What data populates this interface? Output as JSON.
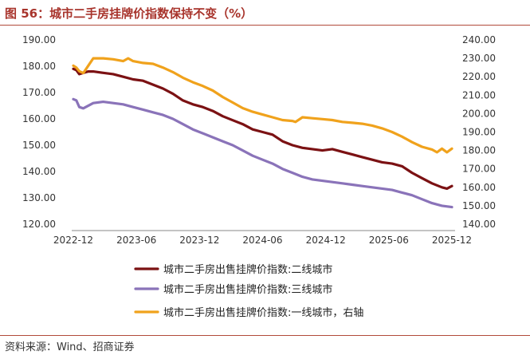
{
  "figure": {
    "title": "图 56：城市二手房挂牌价指数保持不变（%）",
    "source": "资料来源：Wind、招商证券"
  },
  "colors": {
    "tier2": "#7b1113",
    "tier3": "#8a73b9",
    "tier1": "#f0a21c",
    "title": "#a8342c"
  },
  "chart_data": {
    "type": "line",
    "title": "图 56：城市二手房挂牌价指数保持不变（%）",
    "xlabel": "",
    "ylabel": "",
    "x_ticks": [
      "2022-12",
      "2023-06",
      "2023-12",
      "2024-06",
      "2024-12",
      "2025-06",
      "2025-12"
    ],
    "xlim": [
      0,
      38
    ],
    "y_left": {
      "range": [
        120,
        190
      ],
      "ticks": [
        "120.00",
        "130.00",
        "140.00",
        "150.00",
        "160.00",
        "170.00",
        "180.00",
        "190.00"
      ]
    },
    "y_right": {
      "range": [
        140,
        240
      ],
      "ticks": [
        "140.00",
        "150.00",
        "160.00",
        "170.00",
        "180.00",
        "190.00",
        "200.00",
        "210.00",
        "220.00",
        "230.00",
        "240.00"
      ]
    },
    "series": [
      {
        "name": "城市二手房出售挂牌价指数:二线城市",
        "axis": "left",
        "color": "#7b1113",
        "x": [
          0,
          0.3,
          0.6,
          1,
          1.5,
          2,
          3,
          4,
          5,
          6,
          7,
          8,
          9,
          10,
          11,
          12,
          13,
          14,
          15,
          16,
          17,
          18,
          19,
          20,
          21,
          22,
          23,
          24,
          25,
          26,
          27,
          28,
          29,
          30,
          31,
          32,
          33,
          34,
          35,
          36,
          37,
          37.5,
          38
        ],
        "values": [
          179,
          178.5,
          177,
          177.5,
          178,
          178,
          177.5,
          177,
          176,
          175,
          174.5,
          173,
          171.5,
          169.5,
          167,
          165.5,
          164.5,
          163,
          161,
          159.5,
          158,
          156,
          155,
          154,
          151.5,
          150,
          149,
          148.5,
          148,
          148.5,
          147.5,
          146.5,
          145.5,
          144.5,
          143.5,
          143,
          142,
          139.5,
          137.5,
          135.5,
          134,
          133.5,
          134.5
        ]
      },
      {
        "name": "城市二手房出售挂牌价指数:三线城市",
        "axis": "left",
        "color": "#8a73b9",
        "x": [
          0,
          0.3,
          0.6,
          1,
          2,
          3,
          4,
          5,
          6,
          7,
          8,
          9,
          10,
          11,
          12,
          13,
          14,
          15,
          16,
          17,
          18,
          19,
          20,
          21,
          22,
          23,
          24,
          25,
          26,
          27,
          28,
          29,
          30,
          31,
          32,
          33,
          34,
          35,
          36,
          37,
          38
        ],
        "values": [
          167.5,
          167,
          164.5,
          164,
          166,
          166.5,
          166,
          165.5,
          164.5,
          163.5,
          162.5,
          161.5,
          160,
          158,
          156,
          154.5,
          153,
          151.5,
          150,
          148,
          146,
          144.5,
          143,
          141,
          139.5,
          138,
          137,
          136.5,
          136,
          135.5,
          135,
          134.5,
          134,
          133.5,
          133,
          132,
          131,
          129.5,
          128,
          127,
          126.5
        ]
      },
      {
        "name": "城市二手房出售挂牌价指数:一线城市，右轴",
        "axis": "right",
        "color": "#f0a21c",
        "x": [
          0,
          0.3,
          0.6,
          1,
          1.5,
          2,
          3,
          4,
          5,
          5.5,
          6,
          7,
          8,
          9,
          10,
          11,
          12,
          13,
          14,
          15,
          16,
          17,
          18,
          19,
          20,
          21,
          22,
          22.3,
          23,
          24,
          25,
          26,
          27,
          28,
          29,
          30,
          31,
          32,
          33,
          34,
          35,
          36,
          36.5,
          37,
          37.5,
          38
        ],
        "values": [
          226,
          225,
          223,
          222,
          226,
          230,
          230,
          229.5,
          228.5,
          230,
          228.5,
          227.5,
          227,
          225,
          222.5,
          219.5,
          217,
          215,
          212.5,
          209,
          206,
          203,
          201,
          199.5,
          198,
          196.5,
          196,
          195.5,
          198,
          197.5,
          197,
          196.5,
          195.5,
          195,
          194.5,
          193.5,
          192,
          190,
          187.5,
          184.5,
          182,
          180.5,
          179,
          181,
          179,
          181
        ]
      }
    ]
  }
}
